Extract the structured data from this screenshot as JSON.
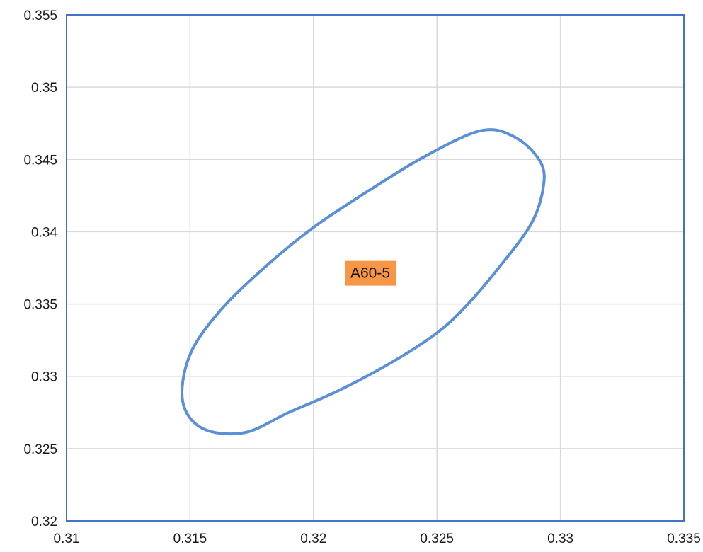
{
  "chart_data": {
    "type": "line",
    "xlim": [
      0.31,
      0.335
    ],
    "ylim": [
      0.32,
      0.355
    ],
    "x_ticks": [
      "0.31",
      "0.315",
      "0.32",
      "0.325",
      "0.33",
      "0.335"
    ],
    "y_ticks": [
      "0.32",
      "0.325",
      "0.33",
      "0.335",
      "0.34",
      "0.345",
      "0.35",
      "0.355"
    ],
    "grid": true,
    "series": [
      {
        "shape": "ellipse",
        "color": "#5b8fd6",
        "points": [
          [
            0.3268,
            0.347
          ],
          [
            0.3282,
            0.3465
          ],
          [
            0.3292,
            0.3448
          ],
          [
            0.3293,
            0.343
          ],
          [
            0.3288,
            0.3405
          ],
          [
            0.3275,
            0.3375
          ],
          [
            0.3262,
            0.3349
          ],
          [
            0.325,
            0.333
          ],
          [
            0.3232,
            0.331
          ],
          [
            0.321,
            0.329
          ],
          [
            0.319,
            0.3275
          ],
          [
            0.3172,
            0.3261
          ],
          [
            0.3155,
            0.3264
          ],
          [
            0.3147,
            0.3283
          ],
          [
            0.315,
            0.3315
          ],
          [
            0.3162,
            0.3345
          ],
          [
            0.318,
            0.3375
          ],
          [
            0.32,
            0.3403
          ],
          [
            0.3222,
            0.3428
          ],
          [
            0.3245,
            0.3452
          ]
        ]
      }
    ],
    "annotations": [
      {
        "text": "A60-5",
        "x": 0.3223,
        "y": 0.3372,
        "background": "#f79646"
      }
    ]
  }
}
